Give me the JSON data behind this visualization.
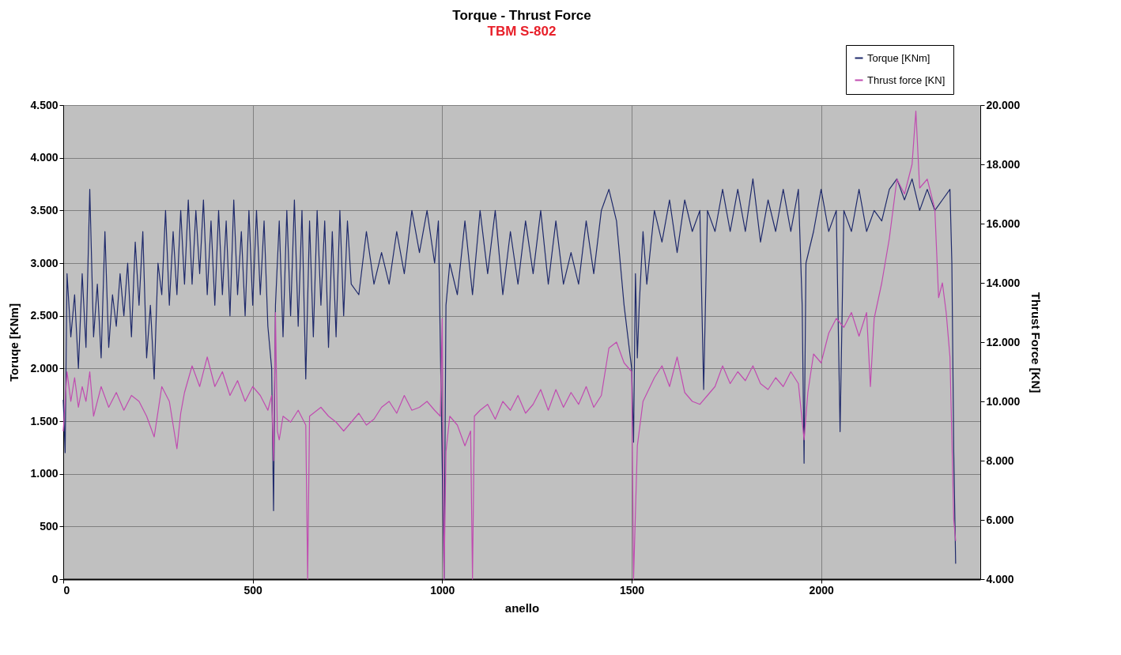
{
  "chart_data": {
    "type": "line",
    "title": "Torque - Thrust Force",
    "subtitle": "TBM S-802",
    "xlabel": "anello",
    "ylabel": "Toruqe [KNm]",
    "y2label": "Thrust Force [KN]",
    "xlim": [
      0,
      2420
    ],
    "xticks": [
      0,
      500,
      1000,
      1500,
      2000
    ],
    "ylim": [
      0,
      4500
    ],
    "yticks": [
      0,
      {
        "value": 500,
        "label": "500"
      },
      {
        "value": 1000,
        "label": "1.000"
      },
      {
        "value": 1500,
        "label": "1.500"
      },
      {
        "value": 2000,
        "label": "2.000"
      },
      {
        "value": 2500,
        "label": "2.500"
      },
      {
        "value": 3000,
        "label": "3.000"
      },
      {
        "value": 3500,
        "label": "3.500"
      },
      {
        "value": 4000,
        "label": "4.000"
      },
      {
        "value": 4500,
        "label": "4.500"
      }
    ],
    "y2lim": [
      4000,
      20000
    ],
    "y2ticks": [
      {
        "value": 4000,
        "label": "4.000"
      },
      {
        "value": 6000,
        "label": "6.000"
      },
      {
        "value": 8000,
        "label": "8.000"
      },
      {
        "value": 10000,
        "label": "10.000"
      },
      {
        "value": 12000,
        "label": "12.000"
      },
      {
        "value": 14000,
        "label": "14.000"
      },
      {
        "value": 16000,
        "label": "16.000"
      },
      {
        "value": 18000,
        "label": "18.000"
      },
      {
        "value": 20000,
        "label": "20.000"
      }
    ],
    "grid": true,
    "legend": "top right",
    "line_style": "solid",
    "series": [
      {
        "name": "Torque [KNm]",
        "color": "#1f2a6b",
        "x": [
          0,
          5,
          10,
          20,
          30,
          40,
          50,
          60,
          70,
          80,
          90,
          100,
          110,
          120,
          130,
          140,
          150,
          160,
          170,
          180,
          190,
          200,
          210,
          220,
          230,
          240,
          250,
          260,
          270,
          280,
          290,
          300,
          310,
          320,
          330,
          340,
          350,
          360,
          370,
          380,
          390,
          400,
          410,
          420,
          430,
          440,
          450,
          460,
          470,
          480,
          490,
          500,
          510,
          520,
          530,
          540,
          550,
          555,
          560,
          570,
          580,
          590,
          600,
          610,
          620,
          630,
          640,
          650,
          660,
          670,
          680,
          690,
          700,
          710,
          720,
          730,
          740,
          750,
          760,
          780,
          800,
          820,
          840,
          860,
          880,
          900,
          920,
          940,
          960,
          980,
          990,
          1000,
          1005,
          1010,
          1020,
          1040,
          1060,
          1080,
          1100,
          1120,
          1140,
          1160,
          1180,
          1200,
          1220,
          1240,
          1260,
          1280,
          1300,
          1320,
          1340,
          1360,
          1380,
          1400,
          1420,
          1440,
          1460,
          1480,
          1500,
          1505,
          1510,
          1515,
          1520,
          1530,
          1540,
          1560,
          1580,
          1600,
          1620,
          1640,
          1660,
          1680,
          1690,
          1700,
          1720,
          1740,
          1760,
          1780,
          1800,
          1820,
          1840,
          1860,
          1880,
          1900,
          1920,
          1940,
          1950,
          1955,
          1960,
          1980,
          2000,
          2020,
          2040,
          2050,
          2060,
          2080,
          2100,
          2120,
          2140,
          2160,
          2180,
          2200,
          2220,
          2240,
          2260,
          2280,
          2300,
          2320,
          2340,
          2345,
          2350,
          2355
        ],
        "values": [
          1700,
          1200,
          2900,
          2300,
          2700,
          2000,
          2900,
          2200,
          3700,
          2300,
          2800,
          2100,
          3300,
          2200,
          2700,
          2400,
          2900,
          2500,
          3000,
          2300,
          3200,
          2600,
          3300,
          2100,
          2600,
          1900,
          3000,
          2700,
          3500,
          2600,
          3300,
          2700,
          3500,
          2800,
          3600,
          2800,
          3500,
          2900,
          3600,
          2700,
          3400,
          2600,
          3500,
          2700,
          3400,
          2500,
          3600,
          2700,
          3300,
          2500,
          3500,
          2600,
          3500,
          2700,
          3400,
          2400,
          2000,
          650,
          2600,
          3400,
          2300,
          3500,
          2500,
          3600,
          2400,
          3500,
          1900,
          3400,
          2300,
          3500,
          2600,
          3400,
          2200,
          3300,
          2300,
          3500,
          2500,
          3400,
          2800,
          2700,
          3300,
          2800,
          3100,
          2800,
          3300,
          2900,
          3500,
          3100,
          3500,
          3000,
          3400,
          1100,
          0,
          2600,
          3000,
          2700,
          3400,
          2700,
          3500,
          2900,
          3500,
          2700,
          3300,
          2800,
          3400,
          2900,
          3500,
          2800,
          3400,
          2800,
          3100,
          2800,
          3400,
          2900,
          3500,
          3700,
          3400,
          2600,
          2000,
          1300,
          2900,
          2100,
          2600,
          3300,
          2800,
          3500,
          3200,
          3600,
          3100,
          3600,
          3300,
          3500,
          1800,
          3500,
          3300,
          3700,
          3300,
          3700,
          3300,
          3800,
          3200,
          3600,
          3300,
          3700,
          3300,
          3700,
          2600,
          1100,
          3000,
          3300,
          3700,
          3300,
          3500,
          1400,
          3500,
          3300,
          3700,
          3300,
          3500,
          3400,
          3700,
          3800,
          3600,
          3800,
          3500,
          3700,
          3500,
          3600,
          3700,
          3000,
          1200,
          150
        ]
      },
      {
        "name": "Thrust force [KN]",
        "color": "#c04cb0",
        "axis": "y2",
        "x": [
          0,
          10,
          20,
          30,
          40,
          50,
          60,
          70,
          80,
          100,
          120,
          140,
          160,
          180,
          200,
          220,
          240,
          260,
          280,
          300,
          310,
          320,
          340,
          360,
          380,
          400,
          420,
          440,
          460,
          480,
          500,
          520,
          540,
          550,
          555,
          560,
          565,
          570,
          580,
          600,
          620,
          640,
          645,
          650,
          680,
          700,
          720,
          740,
          760,
          780,
          800,
          820,
          840,
          860,
          880,
          900,
          920,
          940,
          960,
          980,
          995,
          1000,
          1005,
          1010,
          1020,
          1040,
          1060,
          1075,
          1080,
          1085,
          1100,
          1120,
          1140,
          1160,
          1180,
          1200,
          1220,
          1240,
          1260,
          1280,
          1300,
          1320,
          1340,
          1360,
          1380,
          1400,
          1420,
          1440,
          1460,
          1480,
          1500,
          1505,
          1515,
          1530,
          1560,
          1580,
          1600,
          1620,
          1640,
          1660,
          1680,
          1700,
          1720,
          1740,
          1760,
          1780,
          1800,
          1820,
          1840,
          1860,
          1880,
          1900,
          1920,
          1940,
          1955,
          1965,
          1980,
          2000,
          2020,
          2040,
          2060,
          2080,
          2100,
          2120,
          2130,
          2140,
          2160,
          2180,
          2200,
          2220,
          2240,
          2250,
          2260,
          2280,
          2300,
          2310,
          2320,
          2330,
          2340,
          2350,
          2355
        ],
        "values": [
          9000,
          11000,
          10000,
          10800,
          9800,
          10500,
          10000,
          11000,
          9500,
          10500,
          9800,
          10300,
          9700,
          10200,
          10000,
          9500,
          8800,
          10500,
          10000,
          8400,
          9600,
          10300,
          11200,
          10500,
          11500,
          10500,
          11000,
          10200,
          10700,
          10000,
          10500,
          10200,
          9700,
          10200,
          8000,
          13000,
          9000,
          8700,
          9500,
          9300,
          9700,
          9200,
          4000,
          9500,
          9800,
          9500,
          9300,
          9000,
          9300,
          9600,
          9200,
          9400,
          9800,
          10000,
          9600,
          10200,
          9700,
          9800,
          10000,
          9700,
          9500,
          12800,
          4000,
          8300,
          9500,
          9200,
          8500,
          9000,
          4000,
          9500,
          9700,
          9900,
          9400,
          10000,
          9700,
          10200,
          9600,
          9900,
          10400,
          9700,
          10400,
          9800,
          10300,
          9900,
          10500,
          9800,
          10200,
          11800,
          12000,
          11300,
          11000,
          4000,
          8500,
          10000,
          10800,
          11200,
          10500,
          11500,
          10300,
          10000,
          9900,
          10200,
          10500,
          11200,
          10600,
          11000,
          10700,
          11200,
          10600,
          10400,
          10800,
          10500,
          11000,
          10600,
          8700,
          10300,
          11600,
          11300,
          12300,
          12800,
          12500,
          13000,
          12200,
          13000,
          10500,
          12800,
          14000,
          15500,
          17500,
          17000,
          18000,
          19800,
          17200,
          17500,
          16500,
          13500,
          14000,
          13000,
          11500,
          6000,
          5300
        ]
      }
    ]
  }
}
